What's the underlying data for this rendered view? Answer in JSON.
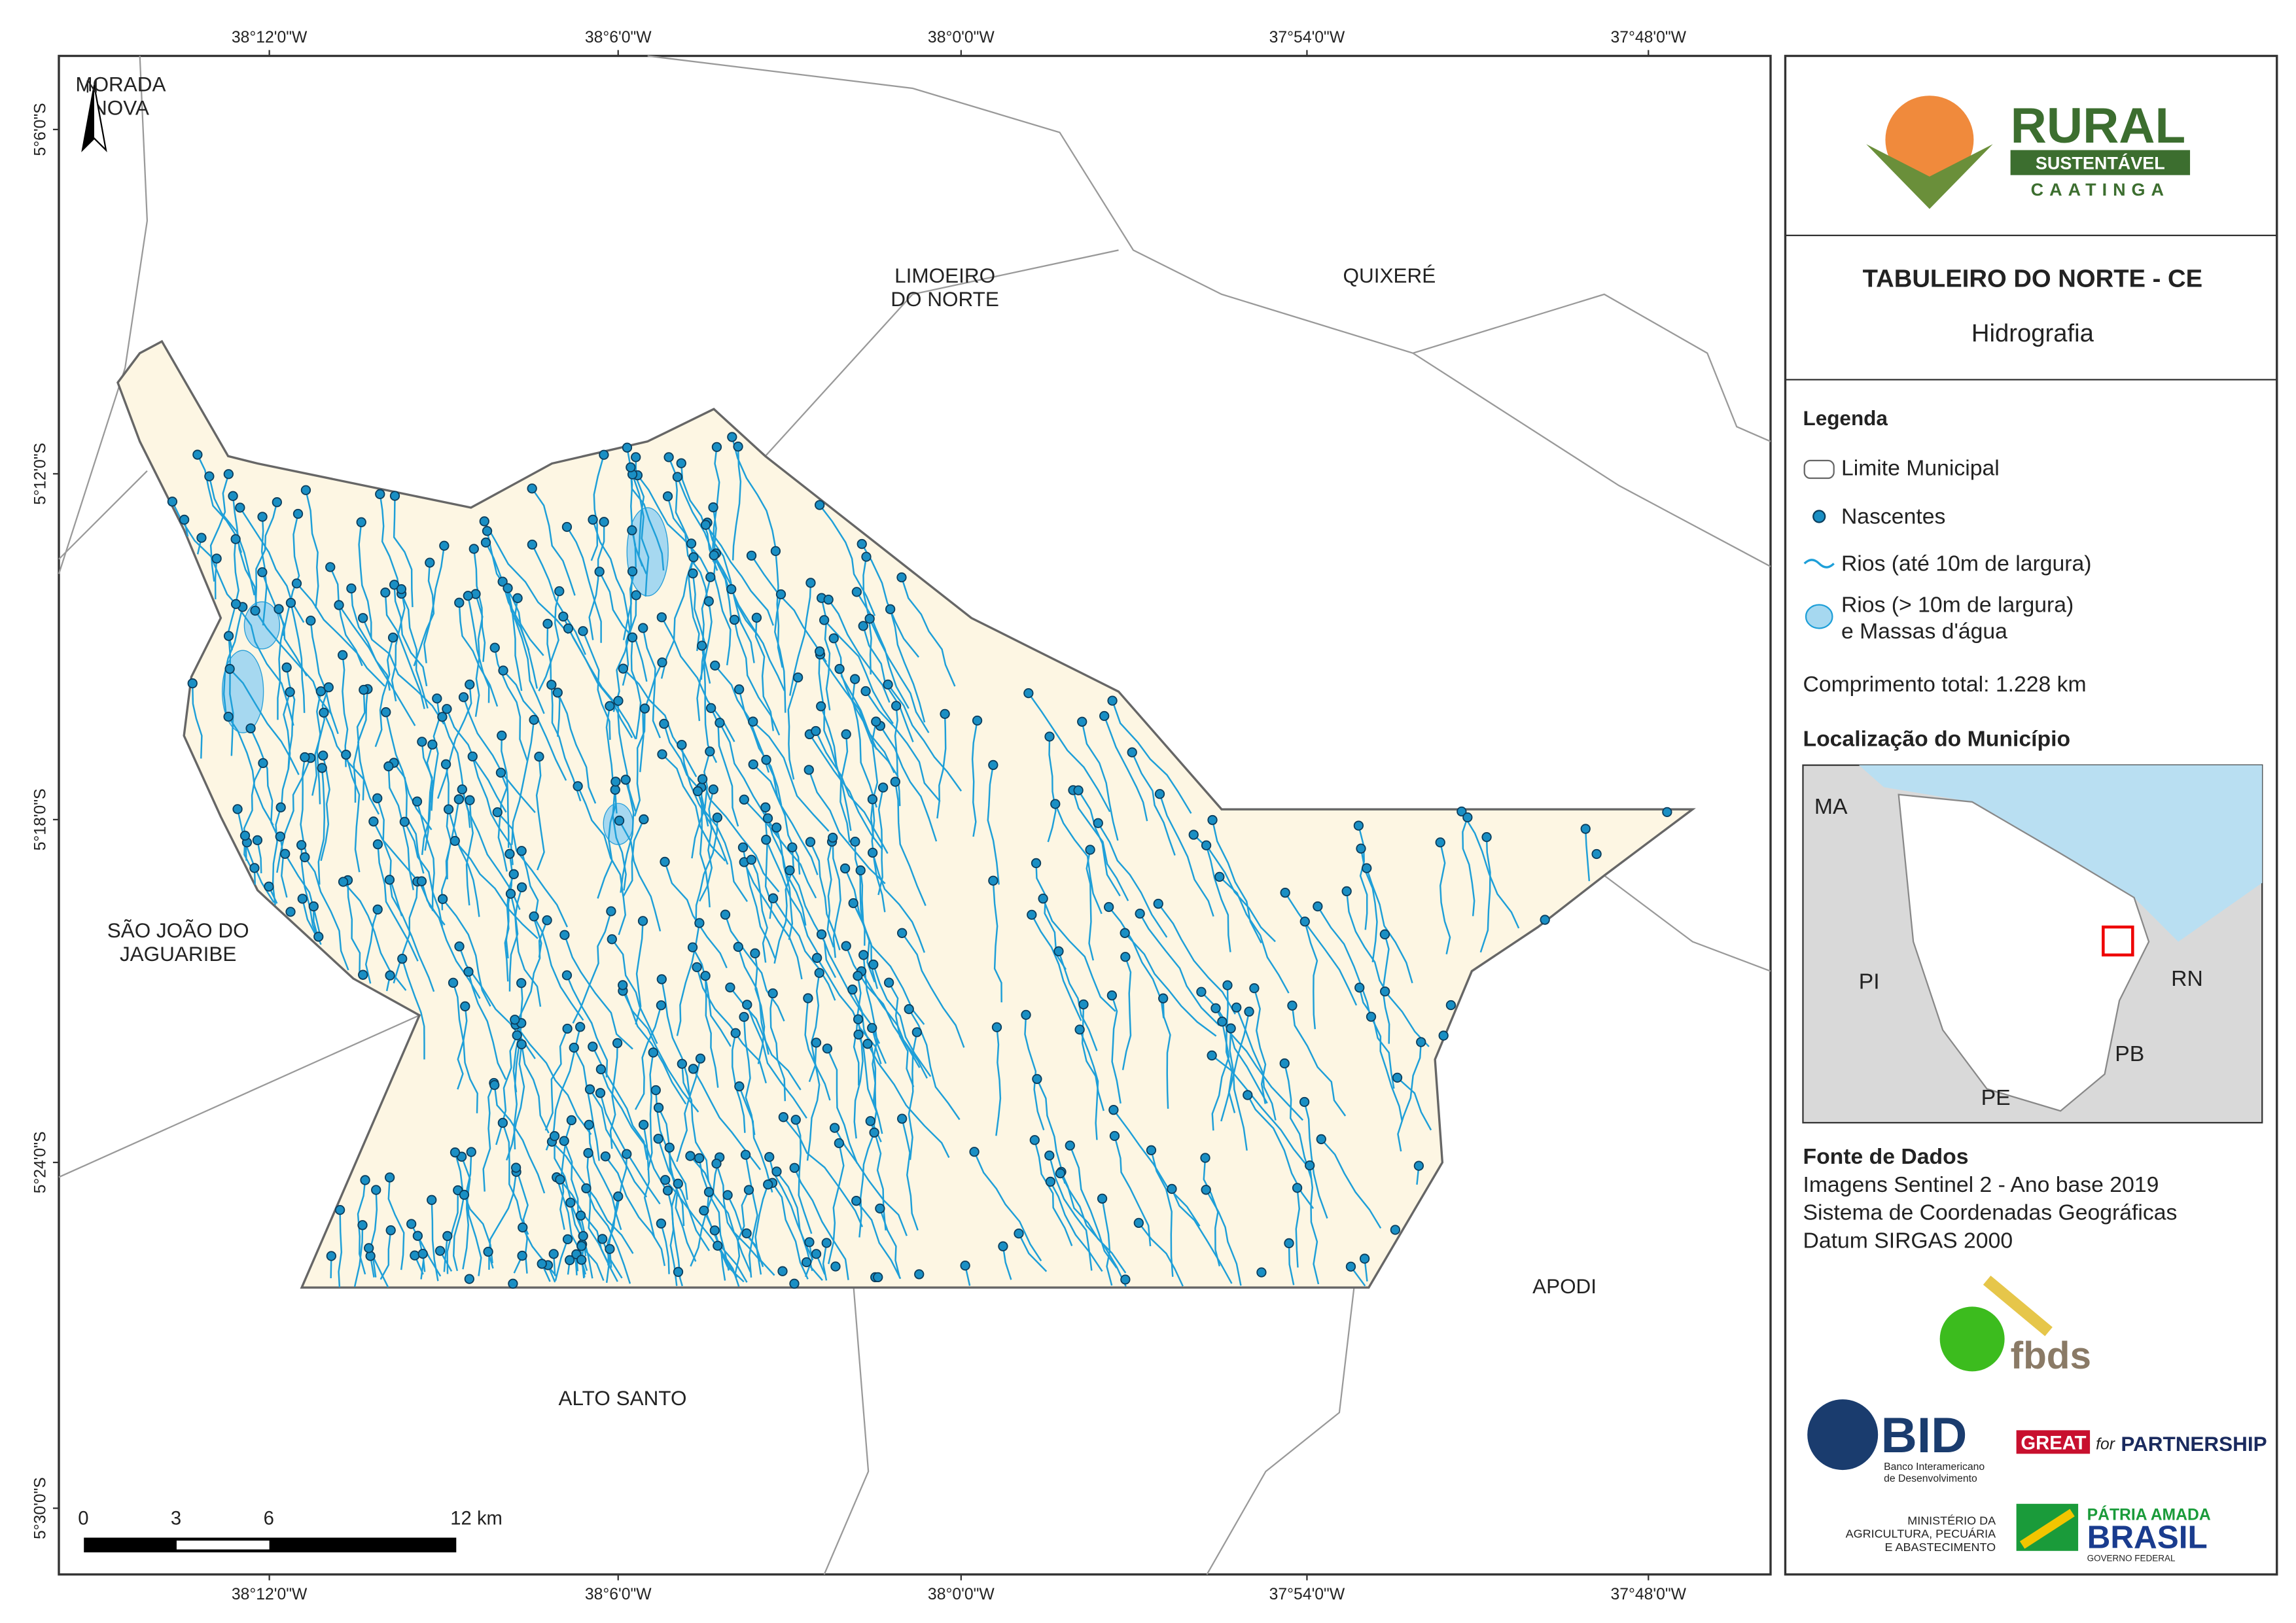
{
  "coordinates": {
    "top": [
      "38°12'0\"W",
      "38°6'0\"W",
      "38°0'0\"W",
      "37°54'0\"W",
      "37°48'0\"W"
    ],
    "bottom": [
      "38°12'0\"W",
      "38°6'0\"W",
      "38°0'0\"W",
      "37°54'0\"W",
      "37°48'0\"W"
    ],
    "left": [
      "5°6'0\"S",
      "5°12'0\"S",
      "5°18'0\"S",
      "5°24'0\"S",
      "5°30'0\"S"
    ]
  },
  "places": [
    {
      "lines": [
        "MORADA",
        "NOVA"
      ]
    },
    {
      "lines": [
        "LIMOEIRO",
        "DO NORTE"
      ]
    },
    {
      "lines": [
        "QUIXERÉ"
      ]
    },
    {
      "lines": [
        "SÃO JOÃO DO",
        "JAGUARIBE"
      ]
    },
    {
      "lines": [
        "APODI"
      ]
    },
    {
      "lines": [
        "ALTO SANTO"
      ]
    }
  ],
  "north_arrow": "N",
  "scale_bar": {
    "labels": [
      "0",
      "3",
      "6",
      "12 km"
    ]
  },
  "logo": {
    "name": "RURAL",
    "band": "SUSTENTÁVEL",
    "region": "CAATINGA"
  },
  "header": {
    "title": "TABULEIRO DO NORTE - CE",
    "subtitle": "Hidrografia"
  },
  "legend": {
    "title": "Legenda",
    "items": [
      {
        "lines": [
          "Limite Municipal"
        ]
      },
      {
        "lines": [
          "Nascentes"
        ]
      },
      {
        "lines": [
          "Rios (até 10m de largura)"
        ]
      },
      {
        "lines": [
          "Rios (> 10m de largura)",
          "e Massas d'água"
        ]
      }
    ],
    "total": "Comprimento total:  1.228 km"
  },
  "location": {
    "title": "Localização do Município",
    "states": [
      "MA",
      "PI",
      "RN",
      "PB",
      "PE"
    ]
  },
  "source": {
    "title": "Fonte de Dados",
    "lines": [
      "Imagens Sentinel 2 - Ano base 2019",
      "Sistema de Coordenadas Geográficas",
      "Datum SIRGAS 2000"
    ]
  },
  "partners": {
    "fbds": "fbds",
    "bid": "BID",
    "bid_name": [
      "Banco Interamericano",
      "de Desenvolvimento"
    ],
    "great": "GREAT",
    "great_for": "for",
    "great_partnership": "PARTNERSHIP",
    "ministry": [
      "MINISTÉRIO DA",
      "AGRICULTURA, PECUÁRIA",
      "E ABASTECIMENTO"
    ],
    "brasil_top": "PÁTRIA AMADA",
    "brasil": "BRASIL",
    "brasil_sub": "GOVERNO FEDERAL"
  }
}
